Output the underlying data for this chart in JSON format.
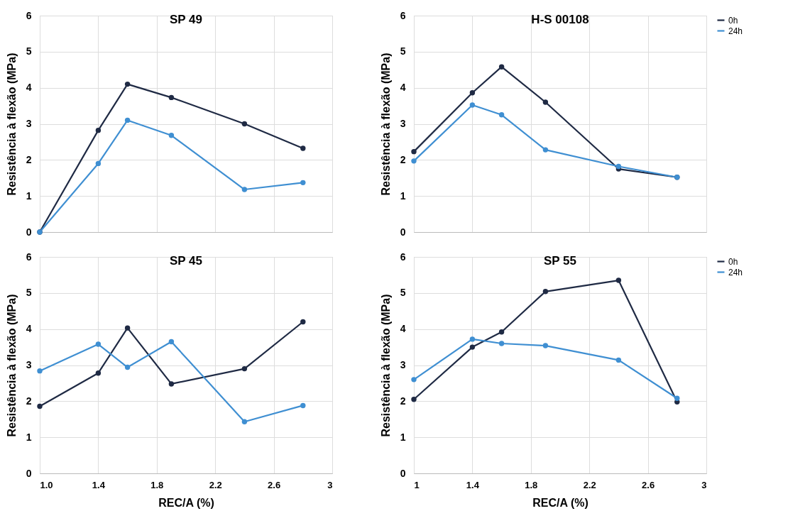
{
  "chart_data": [
    {
      "type": "line",
      "title": "SP 49",
      "ylabel": "Resistência à flexão (MPa)",
      "x": [
        1.0,
        1.4,
        1.6,
        1.9,
        2.4,
        2.8
      ],
      "xlim": [
        1,
        3
      ],
      "xticks": [
        1,
        1.4,
        1.8,
        2.2,
        2.6,
        3
      ],
      "ylim": [
        0,
        6
      ],
      "yticks": [
        0,
        1,
        2,
        3,
        4,
        5,
        6
      ],
      "tick_labels": "y",
      "grid": true,
      "marker": "circle",
      "line_style": "solid",
      "series": [
        {
          "color": "#1f2a44",
          "values": [
            0,
            2.82,
            4.1,
            3.73,
            3.0,
            2.32
          ]
        },
        {
          "color": "#3f8fd2",
          "values": [
            0,
            1.9,
            3.1,
            2.68,
            1.18,
            1.37
          ]
        }
      ]
    },
    {
      "type": "line",
      "title": "H-S 00108",
      "ylabel": "Resistência à flexão (MPa)",
      "x": [
        1.0,
        1.4,
        1.6,
        1.9,
        2.4,
        2.8
      ],
      "xlim": [
        1,
        3
      ],
      "xticks": [
        1,
        1.4,
        1.8,
        2.2,
        2.6,
        3
      ],
      "ylim": [
        0,
        6
      ],
      "yticks": [
        0,
        1,
        2,
        3,
        4,
        5,
        6
      ],
      "tick_labels": "y",
      "grid": true,
      "legend": "right",
      "marker": "circle",
      "line_style": "solid",
      "series": [
        {
          "name": "0h",
          "color": "#1f2a44",
          "values": [
            2.23,
            3.86,
            4.58,
            3.6,
            1.75,
            1.52
          ]
        },
        {
          "name": "24h",
          "color": "#3f8fd2",
          "values": [
            1.97,
            3.52,
            3.25,
            2.28,
            1.82,
            1.52
          ]
        }
      ]
    },
    {
      "type": "line",
      "title": "SP 45",
      "xlabel": "REC/A (%)",
      "ylabel": "Resistência à flexão (MPa)",
      "x": [
        1.0,
        1.4,
        1.6,
        1.9,
        2.4,
        2.8
      ],
      "xlim": [
        1,
        3
      ],
      "xticks": [
        {
          "value": 1,
          "label": "1.0"
        },
        1.4,
        1.8,
        2.2,
        2.6,
        3
      ],
      "ylim": [
        0,
        6
      ],
      "yticks": [
        0,
        1,
        2,
        3,
        4,
        5,
        6
      ],
      "grid": true,
      "marker": "circle",
      "line_style": "solid",
      "series": [
        {
          "color": "#1f2a44",
          "values": [
            1.86,
            2.78,
            4.03,
            2.48,
            2.9,
            4.2
          ]
        },
        {
          "color": "#3f8fd2",
          "values": [
            2.84,
            3.58,
            2.94,
            3.65,
            1.43,
            1.88
          ]
        }
      ]
    },
    {
      "type": "line",
      "title": "SP 55",
      "xlabel": "REC/A (%)",
      "ylabel": "Resistência à flexão (MPa)",
      "x": [
        1.0,
        1.4,
        1.6,
        1.9,
        2.4,
        2.8
      ],
      "xlim": [
        1,
        3
      ],
      "xticks": [
        1,
        1.4,
        1.8,
        2.2,
        2.6,
        3
      ],
      "ylim": [
        0,
        6
      ],
      "yticks": [
        0,
        1,
        2,
        3,
        4,
        5,
        6
      ],
      "grid": true,
      "legend": "right",
      "marker": "circle",
      "line_style": "solid",
      "series": [
        {
          "name": "0h",
          "color": "#1f2a44",
          "values": [
            2.05,
            3.5,
            3.92,
            5.04,
            5.35,
            1.98
          ]
        },
        {
          "name": "24h",
          "color": "#3f8fd2",
          "values": [
            2.6,
            3.72,
            3.6,
            3.54,
            3.14,
            2.08
          ]
        }
      ]
    }
  ]
}
